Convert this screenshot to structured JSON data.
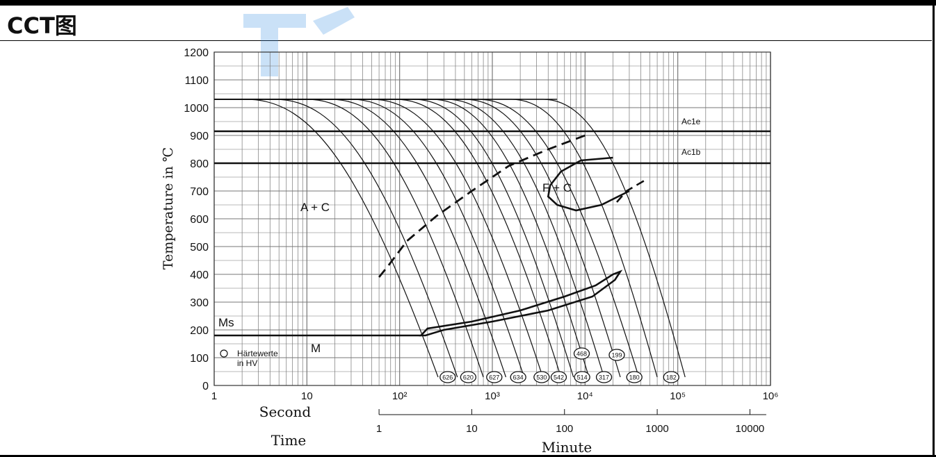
{
  "header": {
    "title": "CCT图"
  },
  "colors": {
    "line": "#111111",
    "grid": "#777777",
    "watermark": "#2f8ae0"
  },
  "chart_data": {
    "type": "line",
    "title": "CCT图",
    "ylabel": "Temperature in ℃",
    "xlabel_second": "Second",
    "xlabel_minute": "Minute",
    "xlabel_time": "Time",
    "ylim": [
      0,
      1200
    ],
    "xlim_seconds": [
      1,
      1000000
    ],
    "x_scale": "log",
    "y_ticks": [
      0,
      100,
      200,
      300,
      400,
      500,
      600,
      700,
      800,
      900,
      1000,
      1100,
      1200
    ],
    "x_ticks_second": [
      {
        "v": 1,
        "label": "1"
      },
      {
        "v": 10,
        "label": "10"
      },
      {
        "v": 100,
        "label": "10²"
      },
      {
        "v": 1000,
        "label": "10³"
      },
      {
        "v": 10000,
        "label": "10⁴"
      },
      {
        "v": 100000,
        "label": "10⁵"
      },
      {
        "v": 1000000,
        "label": "10⁶"
      }
    ],
    "x_ticks_minute": [
      {
        "v": 60,
        "label": "1"
      },
      {
        "v": 600,
        "label": "10"
      },
      {
        "v": 6000,
        "label": "100"
      },
      {
        "v": 60000,
        "label": "1000"
      },
      {
        "v": 600000,
        "label": "10000"
      }
    ],
    "reference_lines": [
      {
        "name": "Ac1e",
        "y": 915
      },
      {
        "name": "Ac1b",
        "y": 800
      }
    ],
    "labels": {
      "ac1e": "Ac1e",
      "ac1b": "Ac1b",
      "ms": "Ms",
      "ac_region": "A + C",
      "fc_region": "F + C",
      "m_region": "M",
      "legend_line1": "Härtewerte",
      "legend_line2": "in HV"
    },
    "ms_temperature": 180,
    "cooling_curves": [
      {
        "start_s": 2.2,
        "end_s": 260
      },
      {
        "start_s": 4.5,
        "end_s": 420
      },
      {
        "start_s": 10,
        "end_s": 800
      },
      {
        "start_s": 18,
        "end_s": 1400
      },
      {
        "start_s": 30,
        "end_s": 2200
      },
      {
        "start_s": 50,
        "end_s": 3500
      },
      {
        "start_s": 90,
        "end_s": 5500
      },
      {
        "start_s": 140,
        "end_s": 7500
      },
      {
        "start_s": 220,
        "end_s": 11000
      },
      {
        "start_s": 320,
        "end_s": 16000
      },
      {
        "start_s": 500,
        "end_s": 24000
      },
      {
        "start_s": 700,
        "end_s": 38000
      },
      {
        "start_s": 1600,
        "end_s": 60000
      },
      {
        "start_s": 3500,
        "end_s": 120000
      }
    ],
    "hardness_values": [
      {
        "label": "626",
        "x_s": 330,
        "y": 30
      },
      {
        "label": "620",
        "x_s": 550,
        "y": 30
      },
      {
        "label": "627",
        "x_s": 1050,
        "y": 30
      },
      {
        "label": "634",
        "x_s": 1900,
        "y": 30
      },
      {
        "label": "530",
        "x_s": 3400,
        "y": 30
      },
      {
        "label": "542",
        "x_s": 5200,
        "y": 30
      },
      {
        "label": "514",
        "x_s": 9300,
        "y": 30
      },
      {
        "label": "317",
        "x_s": 16000,
        "y": 30
      },
      {
        "label": "180",
        "x_s": 34000,
        "y": 30
      },
      {
        "label": "182",
        "x_s": 85000,
        "y": 30
      },
      {
        "label": "468",
        "x_s": 9200,
        "y": 115
      },
      {
        "label": "199",
        "x_s": 22000,
        "y": 110
      }
    ],
    "transformation_curves": {
      "bainite_start_dashed": [
        [
          60,
          390
        ],
        [
          75,
          430
        ],
        [
          120,
          520
        ],
        [
          250,
          610
        ],
        [
          600,
          700
        ],
        [
          1500,
          790
        ],
        [
          4000,
          850
        ],
        [
          10000,
          900
        ]
      ],
      "ferrite_start": [
        [
          20000,
          820
        ],
        [
          9000,
          810
        ],
        [
          5500,
          770
        ],
        [
          4200,
          720
        ],
        [
          4000,
          680
        ],
        [
          5000,
          650
        ],
        [
          8000,
          630
        ],
        [
          15000,
          650
        ],
        [
          30000,
          700
        ]
      ],
      "ferrite_end_dashed": [
        [
          22000,
          660
        ],
        [
          28000,
          700
        ],
        [
          45000,
          740
        ]
      ],
      "martensite_bainite_region": [
        [
          170,
          180
        ],
        [
          200,
          205
        ],
        [
          600,
          230
        ],
        [
          2000,
          270
        ],
        [
          6000,
          320
        ],
        [
          13000,
          360
        ],
        [
          20000,
          400
        ],
        [
          24000,
          410
        ],
        [
          21000,
          380
        ],
        [
          12000,
          320
        ],
        [
          4000,
          270
        ],
        [
          1000,
          230
        ],
        [
          300,
          200
        ],
        [
          190,
          180
        ]
      ]
    }
  }
}
